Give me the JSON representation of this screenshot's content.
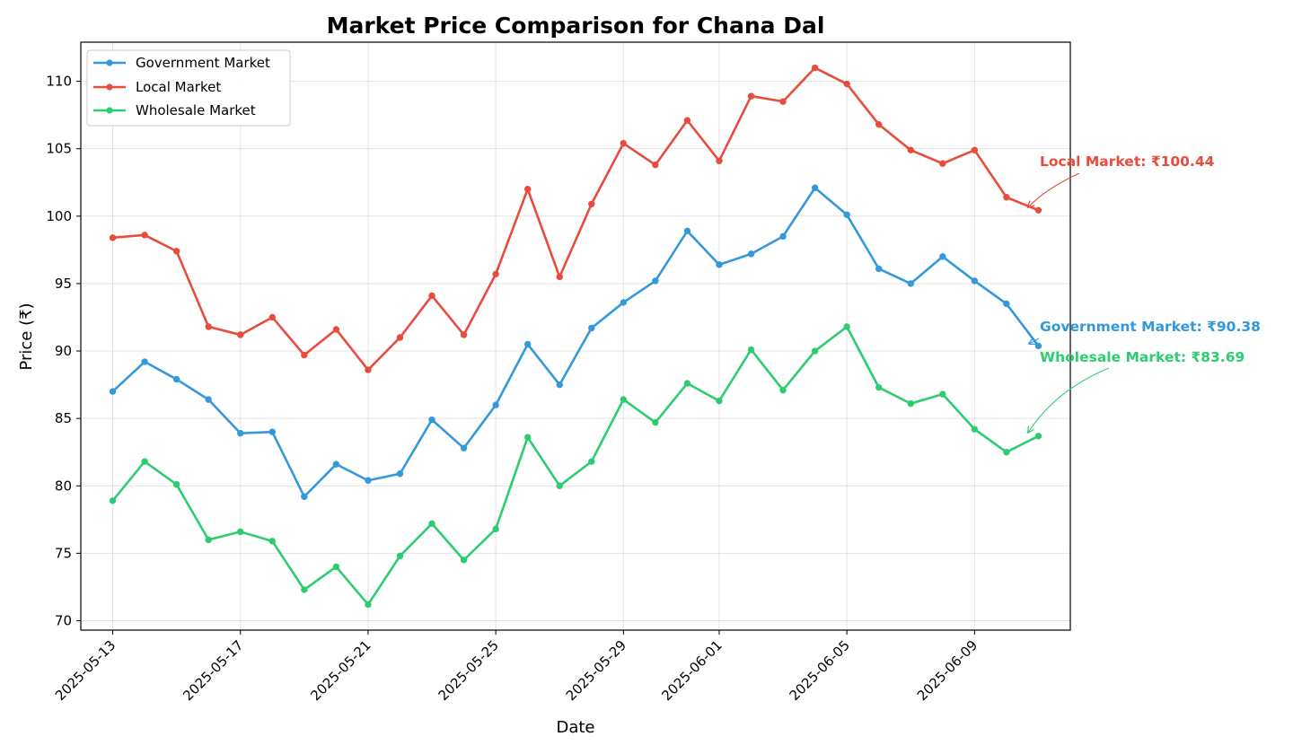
{
  "chart_data": {
    "type": "line",
    "title": "Market Price Comparison for Chana Dal",
    "xlabel": "Date",
    "ylabel": "Price (₹)",
    "ylim": [
      69.3,
      112.9
    ],
    "xlim": [
      "2025-05-12",
      "2025-06-12"
    ],
    "y_ticks": [
      70,
      75,
      80,
      85,
      90,
      95,
      100,
      105,
      110
    ],
    "x_ticks": [
      "2025-05-13",
      "2025-05-17",
      "2025-05-21",
      "2025-05-25",
      "2025-05-29",
      "2025-06-01",
      "2025-06-05",
      "2025-06-09"
    ],
    "grid": true,
    "legend_position": "upper-left",
    "x": [
      "2025-05-13",
      "2025-05-14",
      "2025-05-15",
      "2025-05-16",
      "2025-05-17",
      "2025-05-18",
      "2025-05-19",
      "2025-05-20",
      "2025-05-21",
      "2025-05-22",
      "2025-05-23",
      "2025-05-24",
      "2025-05-25",
      "2025-05-26",
      "2025-05-27",
      "2025-05-28",
      "2025-05-29",
      "2025-05-30",
      "2025-05-31",
      "2025-06-01",
      "2025-06-02",
      "2025-06-03",
      "2025-06-04",
      "2025-06-05",
      "2025-06-06",
      "2025-06-07",
      "2025-06-08",
      "2025-06-09",
      "2025-06-10",
      "2025-06-11"
    ],
    "series": [
      {
        "name": "Government Market",
        "color": "#3498db",
        "values": [
          87.0,
          89.2,
          87.9,
          86.4,
          83.9,
          84.0,
          79.2,
          81.6,
          80.4,
          80.9,
          84.9,
          82.8,
          86.0,
          90.5,
          87.5,
          91.7,
          93.6,
          95.2,
          98.9,
          96.4,
          97.2,
          98.5,
          102.1,
          100.1,
          96.1,
          95.0,
          97.0,
          95.2,
          93.5,
          90.38
        ]
      },
      {
        "name": "Local Market",
        "color": "#e74c3c",
        "values": [
          98.4,
          98.6,
          97.4,
          91.8,
          91.2,
          92.5,
          89.7,
          91.6,
          88.6,
          91.0,
          94.1,
          91.2,
          95.7,
          102.0,
          95.5,
          100.9,
          105.4,
          103.8,
          107.1,
          104.1,
          108.9,
          108.5,
          111.0,
          109.8,
          106.8,
          104.9,
          103.9,
          104.9,
          101.4,
          100.44
        ]
      },
      {
        "name": "Wholesale Market",
        "color": "#2ecc71",
        "values": [
          78.9,
          81.8,
          80.1,
          76.0,
          76.6,
          75.9,
          72.3,
          74.0,
          71.2,
          74.8,
          77.2,
          74.5,
          76.8,
          83.6,
          80.0,
          81.8,
          86.4,
          84.7,
          87.6,
          86.3,
          90.1,
          87.1,
          90.0,
          91.8,
          87.3,
          86.1,
          86.8,
          84.2,
          82.5,
          83.69
        ]
      }
    ],
    "annotations": [
      {
        "text": "Local Market: ₹100.44",
        "color": "#e74c3c"
      },
      {
        "text": "Government Market: ₹90.38",
        "color": "#3498db"
      },
      {
        "text": "Wholesale Market: ₹83.69",
        "color": "#2ecc71"
      }
    ]
  }
}
